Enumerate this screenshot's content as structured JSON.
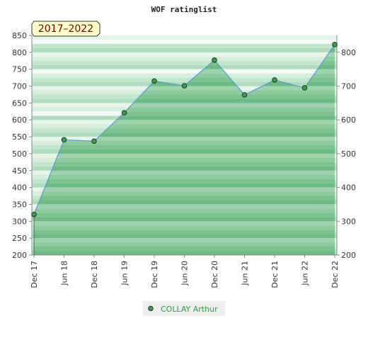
{
  "chart_data": {
    "type": "area",
    "title": "WOF ratinglist",
    "badge": "2017–2022",
    "x_labels": [
      "Dec 17",
      "Jun 18",
      "Dec 18",
      "Jun 19",
      "Dec 19",
      "Jun 20",
      "Dec 20",
      "Jun 21",
      "Dec 21",
      "Jun 22",
      "Dec 22"
    ],
    "series": [
      {
        "name": "COLLAY Arthur",
        "values": [
          320,
          541,
          537,
          621,
          715,
          701,
          777,
          674,
          718,
          695,
          823
        ]
      }
    ],
    "y_left_ticks": [
      200,
      250,
      300,
      350,
      400,
      450,
      500,
      550,
      600,
      650,
      700,
      750,
      800,
      850
    ],
    "y_right_ticks": [
      200,
      300,
      400,
      500,
      600,
      700,
      800
    ],
    "ylim": [
      200,
      850
    ],
    "grid": true,
    "legend_position": "bottom-center",
    "colors": {
      "line": "#5b9bd5",
      "marker": "#3c9a52",
      "legend_text": "#2e9e4a",
      "badge_bg": "#ffffcc",
      "badge_text": "#7a0000"
    }
  }
}
